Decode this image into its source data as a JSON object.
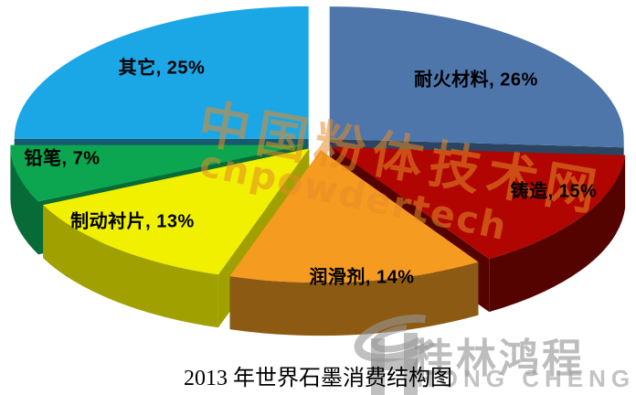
{
  "title": "2013 年世界石墨消费结构图",
  "watermark": {
    "line1": "中国粉体技术网",
    "line2": "cnpowdertech"
  },
  "logo": {
    "cn": "桂林鸿程",
    "en": "HONG CHENG"
  },
  "chart_data": {
    "type": "pie",
    "style": "3d-exploded",
    "title": "2013 年世界石墨消费结构图",
    "unit": "%",
    "start_angle_deg": 0,
    "direction": "clockwise",
    "legend": "none",
    "label_format": "name, value%",
    "slices": [
      {
        "name": "耐火材料",
        "name_en": "refractory",
        "value": 26,
        "label": "耐火材料, 26%",
        "color": "#4E76AB",
        "side_color": "#2B4462"
      },
      {
        "name": "铸造",
        "name_en": "casting",
        "value": 15,
        "label": "铸造, 15%",
        "color": "#B00500",
        "side_color": "#550300"
      },
      {
        "name": "润滑剂",
        "name_en": "lubricant",
        "value": 14,
        "label": "润滑剂, 14%",
        "color": "#F59B20",
        "side_color": "#8C5A12"
      },
      {
        "name": "制动衬片",
        "name_en": "brake-lining",
        "value": 13,
        "label": "制动衬片, 13%",
        "color": "#F0F000",
        "side_color": "#A0A000"
      },
      {
        "name": "铅笔",
        "name_en": "pencil",
        "value": 7,
        "label": "铅笔, 7%",
        "color": "#0BA64F",
        "side_color": "#076B38"
      },
      {
        "name": "其它",
        "name_en": "others",
        "value": 25,
        "label": "其它, 25%",
        "color": "#1BA7E6",
        "side_color": "#155A70"
      }
    ]
  }
}
